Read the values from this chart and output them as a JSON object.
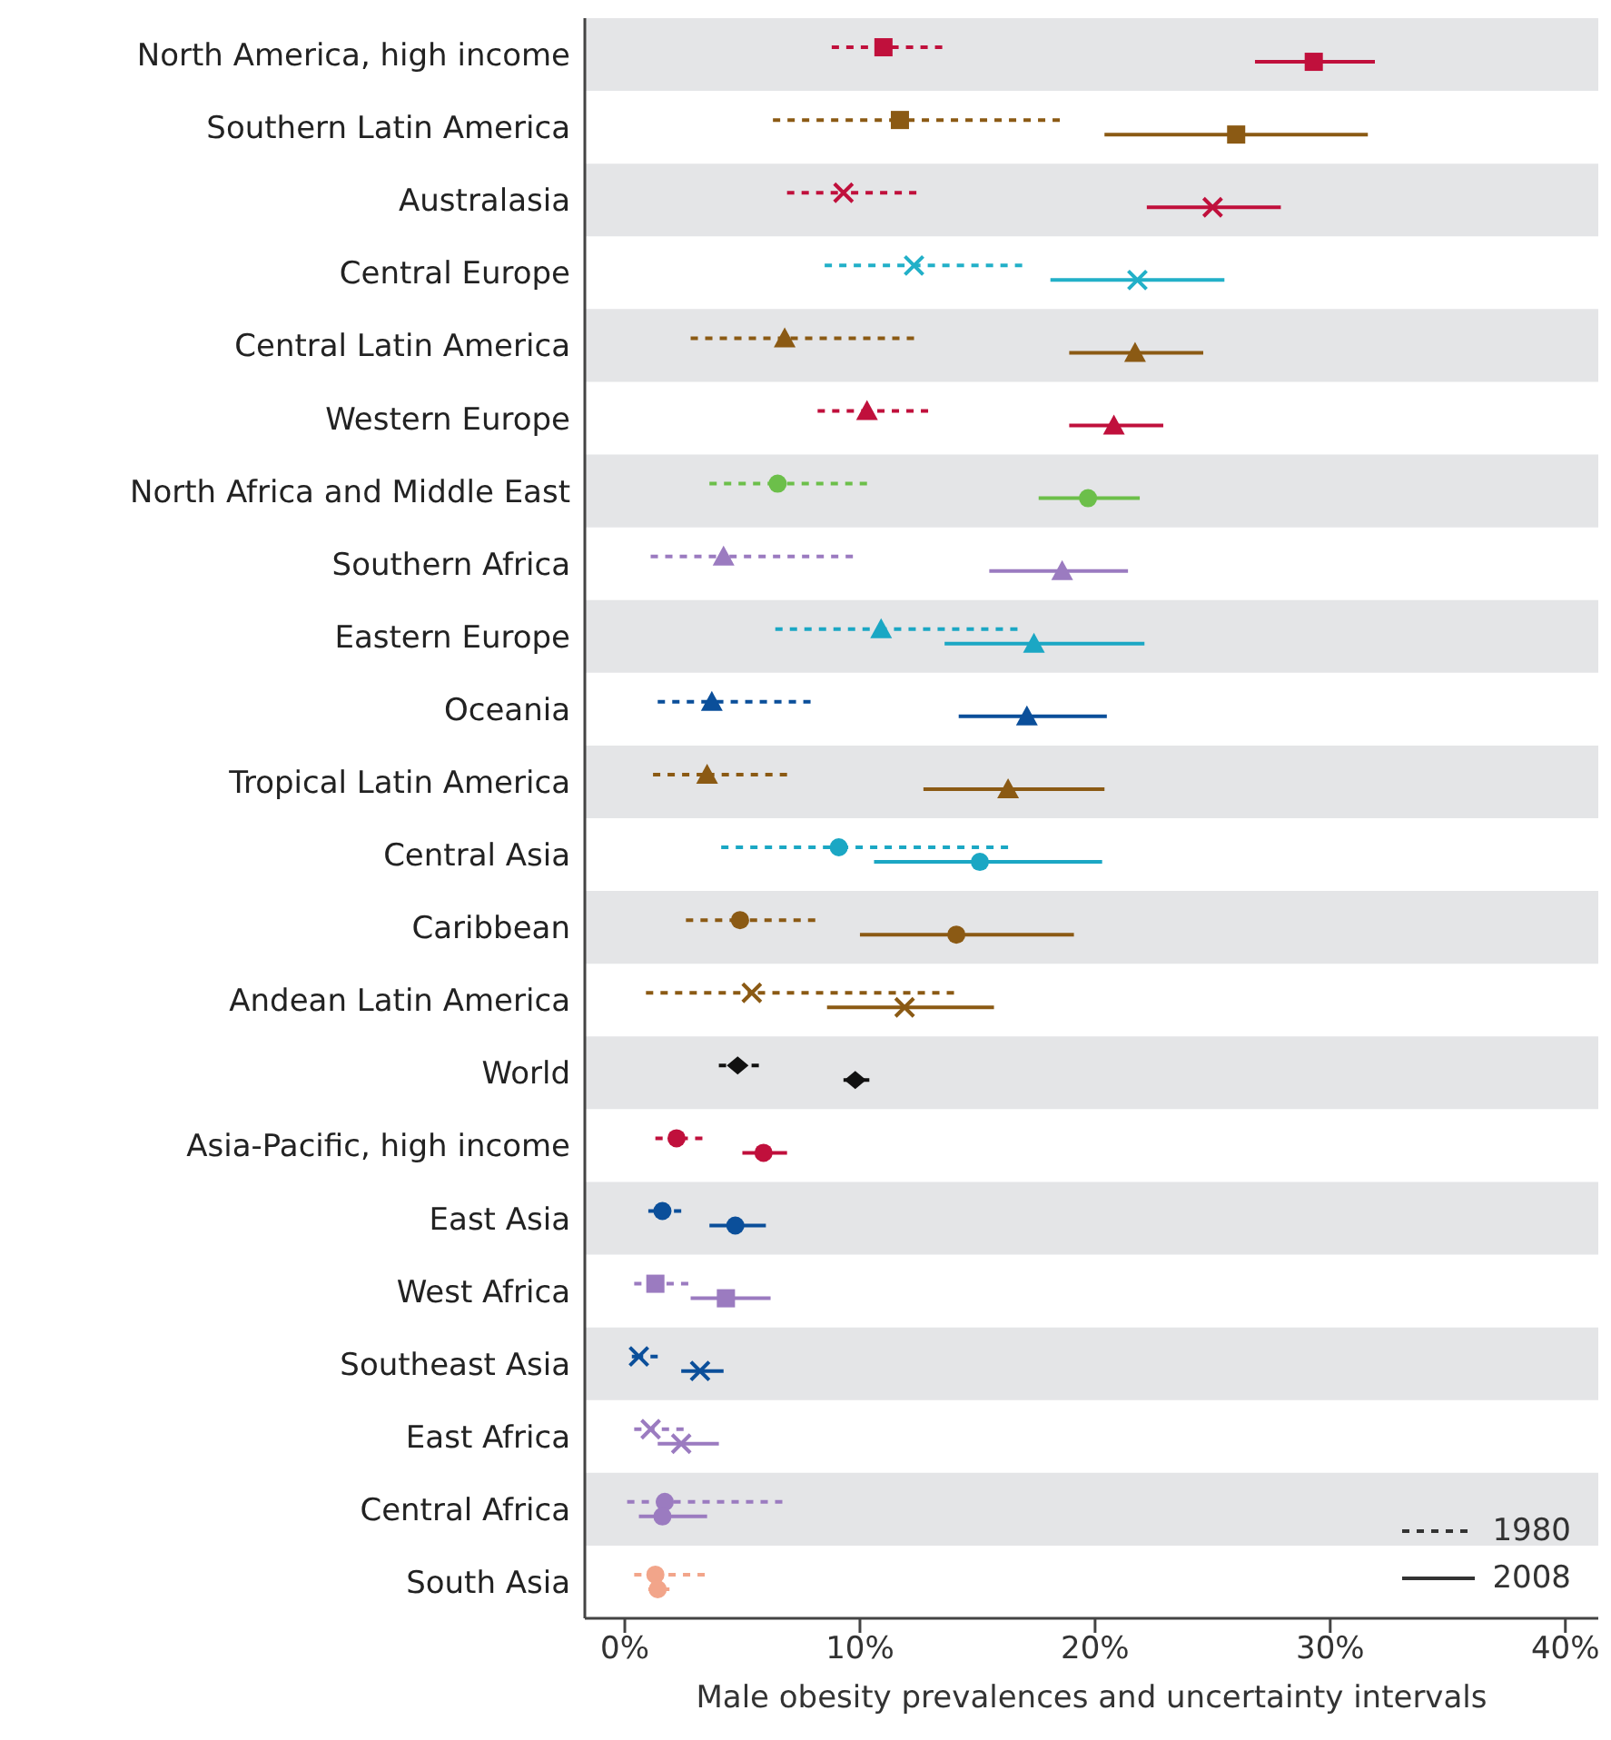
{
  "chart_data": {
    "type": "scatter",
    "xlabel": "Male obesity prevalences and uncertainty intervals",
    "categories": [
      "North America, high income",
      "Southern Latin America",
      "Australasia",
      "Central Europe",
      "Central Latin America",
      "Western Europe",
      "North Africa and Middle East",
      "Southern Africa",
      "Eastern Europe",
      "Oceania",
      "Tropical Latin America",
      "Central Asia",
      "Caribbean",
      "Andean Latin America",
      "World",
      "Asia-Pacific, high income",
      "East Asia",
      "West Africa",
      "Southeast Asia",
      "East Africa",
      "Central Africa",
      "South Asia"
    ],
    "orientation": "horizontal",
    "xlim": [
      -1.7,
      41.4
    ],
    "xticks": [
      {
        "value": 0,
        "label": "0%"
      },
      {
        "value": 10,
        "label": "10%"
      },
      {
        "value": 20,
        "label": "20%"
      },
      {
        "value": 30,
        "label": "30%"
      },
      {
        "value": 40,
        "label": "40%"
      }
    ],
    "legend": "bottom right",
    "series": [
      {
        "name": "1980",
        "line_style": "dashed",
        "marker": [
          "square",
          "square",
          "cross",
          "cross",
          "triangle",
          "triangle",
          "circle",
          "triangle",
          "triangle",
          "triangle",
          "triangle",
          "circle",
          "circle",
          "cross",
          "diamond",
          "circle",
          "circle",
          "square",
          "cross",
          "cross",
          "circle",
          "circle"
        ],
        "colors": [
          "#c0103c",
          "#8b5a14",
          "#c0103c",
          "#22b0c8",
          "#8b5a14",
          "#c0103c",
          "#6cbf4a",
          "#9b7bc0",
          "#1ba7c4",
          "#0b4f9a",
          "#8b5a14",
          "#1ba7c4",
          "#8b5a14",
          "#8b5a14",
          "#111111",
          "#c0103c",
          "#0b4f9a",
          "#9b7bc0",
          "#0b4f9a",
          "#9b7bc0",
          "#9b7bc0",
          "#f2a58a"
        ],
        "values": [
          11.0,
          11.7,
          9.3,
          12.3,
          6.8,
          10.3,
          6.5,
          4.2,
          10.9,
          3.7,
          3.5,
          9.1,
          4.9,
          5.4,
          4.8,
          2.2,
          1.6,
          1.3,
          0.6,
          1.1,
          1.7,
          1.3
        ],
        "errors": [
          [
            8.8,
            13.5
          ],
          [
            6.3,
            18.5
          ],
          [
            6.9,
            12.4
          ],
          [
            8.5,
            16.9
          ],
          [
            2.8,
            12.3
          ],
          [
            8.2,
            12.9
          ],
          [
            3.6,
            10.3
          ],
          [
            1.1,
            9.7
          ],
          [
            6.4,
            16.7
          ],
          [
            1.4,
            7.9
          ],
          [
            1.2,
            6.9
          ],
          [
            4.1,
            16.3
          ],
          [
            2.6,
            8.1
          ],
          [
            0.9,
            14.0
          ],
          [
            4.0,
            5.7
          ],
          [
            1.3,
            3.3
          ],
          [
            1.0,
            2.4
          ],
          [
            0.4,
            2.7
          ],
          [
            0.3,
            1.4
          ],
          [
            0.4,
            2.5
          ],
          [
            0.1,
            6.7
          ],
          [
            0.4,
            3.4
          ]
        ]
      },
      {
        "name": "2008",
        "line_style": "solid",
        "marker": [
          "square",
          "square",
          "cross",
          "cross",
          "triangle",
          "triangle",
          "circle",
          "triangle",
          "triangle",
          "triangle",
          "triangle",
          "circle",
          "circle",
          "cross",
          "diamond",
          "circle",
          "circle",
          "square",
          "cross",
          "cross",
          "circle",
          "circle"
        ],
        "colors": [
          "#c0103c",
          "#8b5a14",
          "#c0103c",
          "#22b0c8",
          "#8b5a14",
          "#c0103c",
          "#6cbf4a",
          "#9b7bc0",
          "#1ba7c4",
          "#0b4f9a",
          "#8b5a14",
          "#1ba7c4",
          "#8b5a14",
          "#8b5a14",
          "#111111",
          "#c0103c",
          "#0b4f9a",
          "#9b7bc0",
          "#0b4f9a",
          "#9b7bc0",
          "#9b7bc0",
          "#f2a58a"
        ],
        "values": [
          29.3,
          26.0,
          25.0,
          21.8,
          21.7,
          20.8,
          19.7,
          18.6,
          17.4,
          17.1,
          16.3,
          15.1,
          14.1,
          11.9,
          9.8,
          5.9,
          4.7,
          4.3,
          3.2,
          2.4,
          1.6,
          1.4
        ],
        "errors": [
          [
            26.8,
            31.9
          ],
          [
            20.4,
            31.6
          ],
          [
            22.2,
            27.9
          ],
          [
            18.1,
            25.5
          ],
          [
            18.9,
            24.6
          ],
          [
            18.9,
            22.9
          ],
          [
            17.6,
            21.9
          ],
          [
            15.5,
            21.4
          ],
          [
            13.6,
            22.1
          ],
          [
            14.2,
            20.5
          ],
          [
            12.7,
            20.4
          ],
          [
            10.6,
            20.3
          ],
          [
            10.0,
            19.1
          ],
          [
            8.6,
            15.7
          ],
          [
            9.3,
            10.4
          ],
          [
            5.0,
            6.9
          ],
          [
            3.6,
            6.0
          ],
          [
            2.8,
            6.2
          ],
          [
            2.4,
            4.2
          ],
          [
            1.4,
            4.0
          ],
          [
            0.6,
            3.5
          ],
          [
            1.0,
            1.9
          ]
        ]
      }
    ]
  }
}
